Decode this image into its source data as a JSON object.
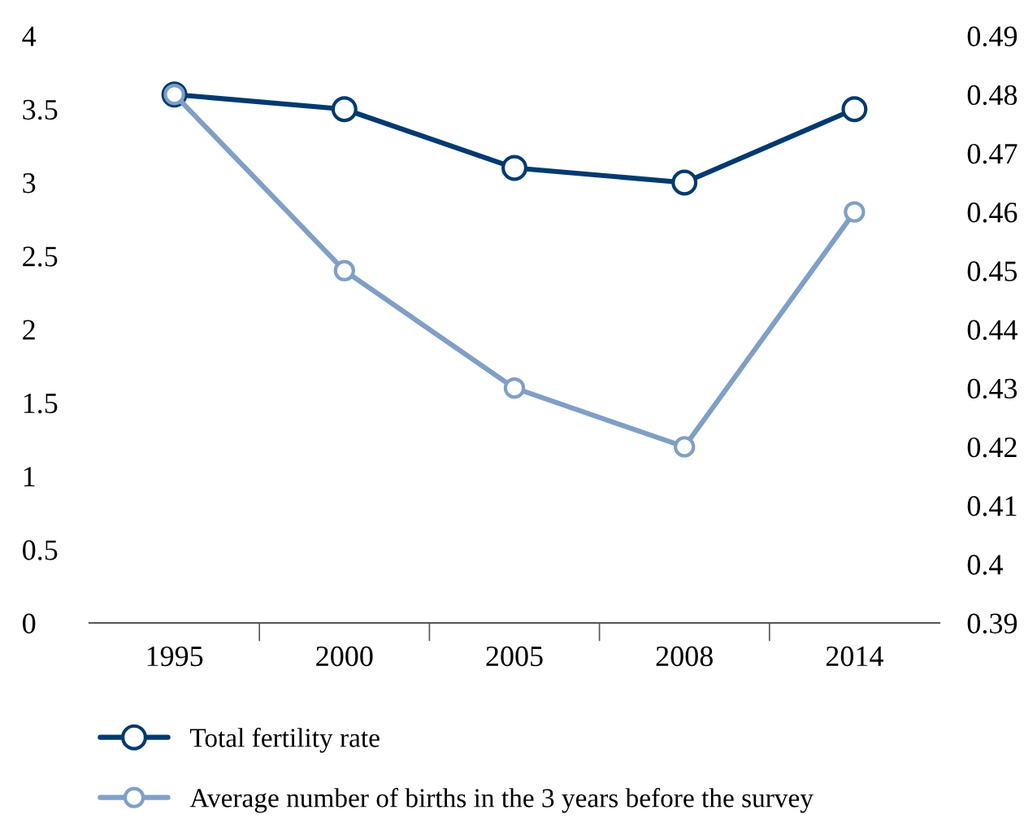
{
  "chart_data": {
    "type": "line",
    "categories": [
      "1995",
      "2000",
      "2005",
      "2008",
      "2014"
    ],
    "series": [
      {
        "name": "Total fertility rate",
        "color": "#003a70",
        "values": [
          3.6,
          3.5,
          3.1,
          3.0,
          3.5
        ]
      },
      {
        "name": "Average number of births in the 3 years before the survey",
        "color": "#7f9fc6",
        "values": [
          0.48,
          0.45,
          0.43,
          0.42,
          0.46
        ],
        "axis": "y2"
      }
    ],
    "ylim": [
      0,
      4
    ],
    "yticks": [
      0,
      0.5,
      1,
      1.5,
      2,
      2.5,
      3,
      3.5,
      4
    ],
    "y2lim": [
      0.39,
      0.49
    ],
    "y2ticks": [
      0.39,
      0.4,
      0.41,
      0.42,
      0.43,
      0.44,
      0.45,
      0.46,
      0.47,
      0.48,
      0.49
    ],
    "marker": "circle",
    "line_style": "solid",
    "grid": false,
    "legend": "bottom"
  }
}
